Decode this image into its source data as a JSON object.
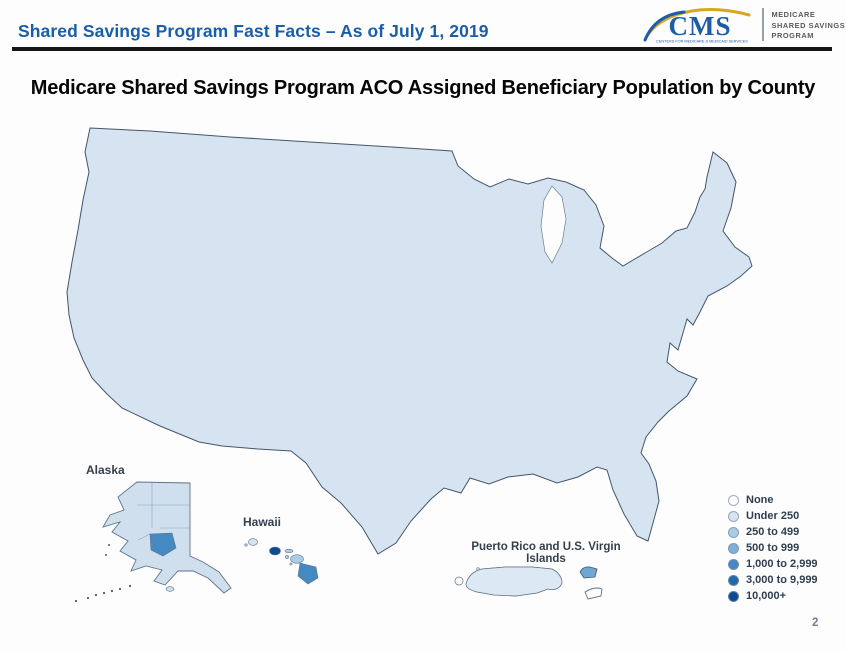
{
  "header": {
    "title": "Shared Savings Program Fast Facts – As of July 1, 2019"
  },
  "logo": {
    "acronym": "CMS",
    "tagline": "CENTERS FOR MEDICARE & MEDICAID SERVICES",
    "program_lines": [
      "MEDICARE",
      "SHARED SAVINGS",
      "PROGRAM"
    ],
    "accent_blue": "#1c5da6",
    "accent_gold": "#d7a723"
  },
  "slide": {
    "title": "Medicare Shared Savings Program ACO Assigned Beneficiary Population by County",
    "page_number": "2"
  },
  "map": {
    "labels": {
      "alaska": "Alaska",
      "hawaii": "Hawaii",
      "puerto_rico": "Puerto Rico and U.S. Virgin Islands"
    }
  },
  "legend": {
    "classes": [
      {
        "label": "None",
        "color": "#fdfdfe"
      },
      {
        "label": "Under 250",
        "color": "#d6e3f1"
      },
      {
        "label": "250 to 499",
        "color": "#abcbe6"
      },
      {
        "label": "500 to 999",
        "color": "#7db0d8"
      },
      {
        "label": "1,000 to 2,999",
        "color": "#4589c2"
      },
      {
        "label": "3,000 to 9,999",
        "color": "#2268ab"
      },
      {
        "label": "10,000+",
        "color": "#0c4b8e"
      }
    ]
  }
}
